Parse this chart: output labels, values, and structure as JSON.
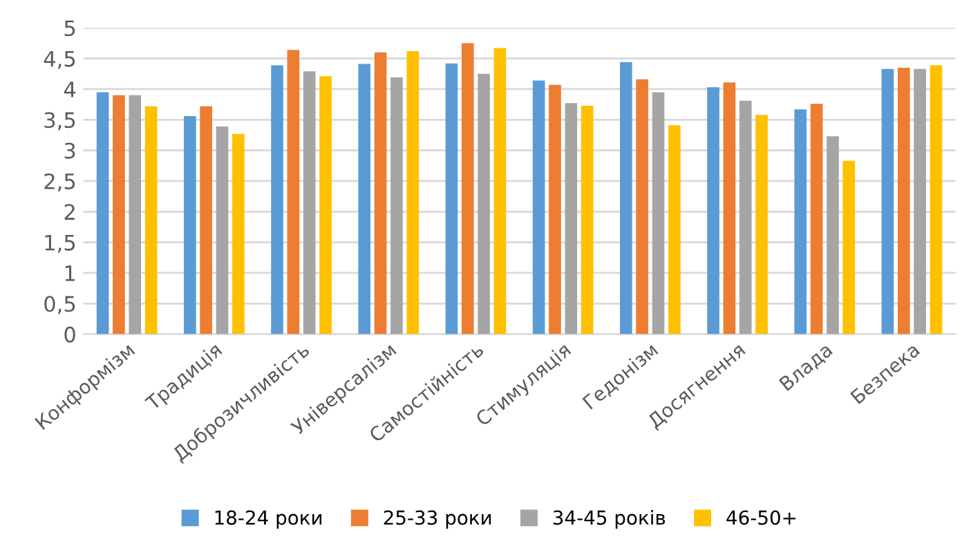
{
  "chart_data": {
    "type": "bar",
    "categories": [
      "Конформізм",
      "Традиція",
      "Доброзичливість",
      "Універсалізм",
      "Самостійність",
      "Стимуляція",
      "Гедонізм",
      "Досягнення",
      "Влада",
      "Безпека"
    ],
    "series": [
      {
        "name": "18-24 роки",
        "color": "#5b9bd5",
        "values": [
          3.95,
          3.56,
          4.39,
          4.41,
          4.42,
          4.14,
          4.44,
          4.03,
          3.67,
          4.33
        ]
      },
      {
        "name": "25-33 роки",
        "color": "#ed7d31",
        "values": [
          3.9,
          3.72,
          4.64,
          4.6,
          4.75,
          4.07,
          4.16,
          4.11,
          3.76,
          4.35
        ]
      },
      {
        "name": "34-45 років",
        "color": "#a5a5a5",
        "values": [
          3.9,
          3.39,
          4.29,
          4.19,
          4.25,
          3.77,
          3.95,
          3.81,
          3.23,
          4.33
        ]
      },
      {
        "name": "46-50+",
        "color": "#ffc000",
        "values": [
          3.72,
          3.27,
          4.21,
          4.62,
          4.67,
          3.73,
          3.41,
          3.58,
          2.83,
          4.39
        ]
      }
    ],
    "ylim": [
      0,
      5
    ],
    "yticks": [
      0,
      {
        "value": 0.5,
        "label": "0,5"
      },
      1,
      {
        "value": 1.5,
        "label": "1,5"
      },
      2,
      {
        "value": 2.5,
        "label": "2,5"
      },
      3,
      {
        "value": 3.5,
        "label": "3,5"
      },
      4,
      {
        "value": 4.5,
        "label": "4,5"
      },
      5
    ],
    "grid": "y",
    "legend": "bottom"
  }
}
